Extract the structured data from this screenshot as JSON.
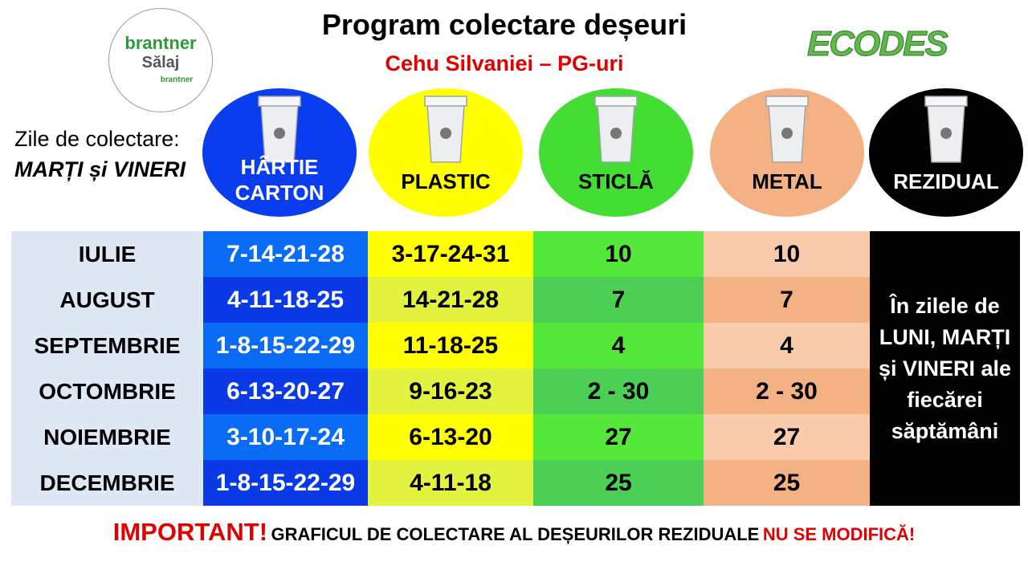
{
  "header": {
    "title": "Program colectare deșeuri",
    "subtitle": "Cehu Silvaniei – PG-uri",
    "logo_left": {
      "brand": "brantner",
      "region": "Sălaj",
      "small": "brantner"
    },
    "logo_right": "ECODES"
  },
  "collection_days": {
    "label": "Zile de colectare:",
    "days": "MARȚI și VINERI"
  },
  "categories": [
    {
      "lines": [
        "HÂRTIE",
        "CARTON"
      ],
      "color": "#0a3cf0",
      "text_color": "#ffffff"
    },
    {
      "lines": [
        "PLASTIC"
      ],
      "color": "#ffff00",
      "text_color": "#000000"
    },
    {
      "lines": [
        "STICLĂ"
      ],
      "color": "#44dd33",
      "text_color": "#000000"
    },
    {
      "lines": [
        "METAL"
      ],
      "color": "#f4b183",
      "text_color": "#000000"
    },
    {
      "lines": [
        "REZIDUAL"
      ],
      "color": "#000000",
      "text_color": "#ffffff"
    }
  ],
  "table": {
    "rows": [
      [
        "IULIE",
        "7-14-21-28",
        "3-17-24-31",
        "10",
        "10"
      ],
      [
        "AUGUST",
        "4-11-18-25",
        "14-21-28",
        "7",
        "7"
      ],
      [
        "SEPTEMBRIE",
        "1-8-15-22-29",
        "11-18-25",
        "4",
        "4"
      ],
      [
        "OCTOMBRIE",
        "6-13-20-27",
        "9-16-23",
        "2 - 30",
        "2 - 30"
      ],
      [
        "NOIEMBRIE",
        "3-10-17-24",
        "6-13-20",
        "27",
        "27"
      ],
      [
        "DECEMBRIE",
        "1-8-15-22-29",
        "4-11-18",
        "25",
        "25"
      ]
    ],
    "residual_note": "În zilele de LUNI, MARȚI și VINERI ale fiecărei săptămâni"
  },
  "footer": {
    "important": "IMPORTANT!",
    "text": "GRAFICUL DE COLECTARE AL DEȘEURILOR REZIDUALE",
    "emphasis": "NU SE MODIFICĂ!"
  }
}
